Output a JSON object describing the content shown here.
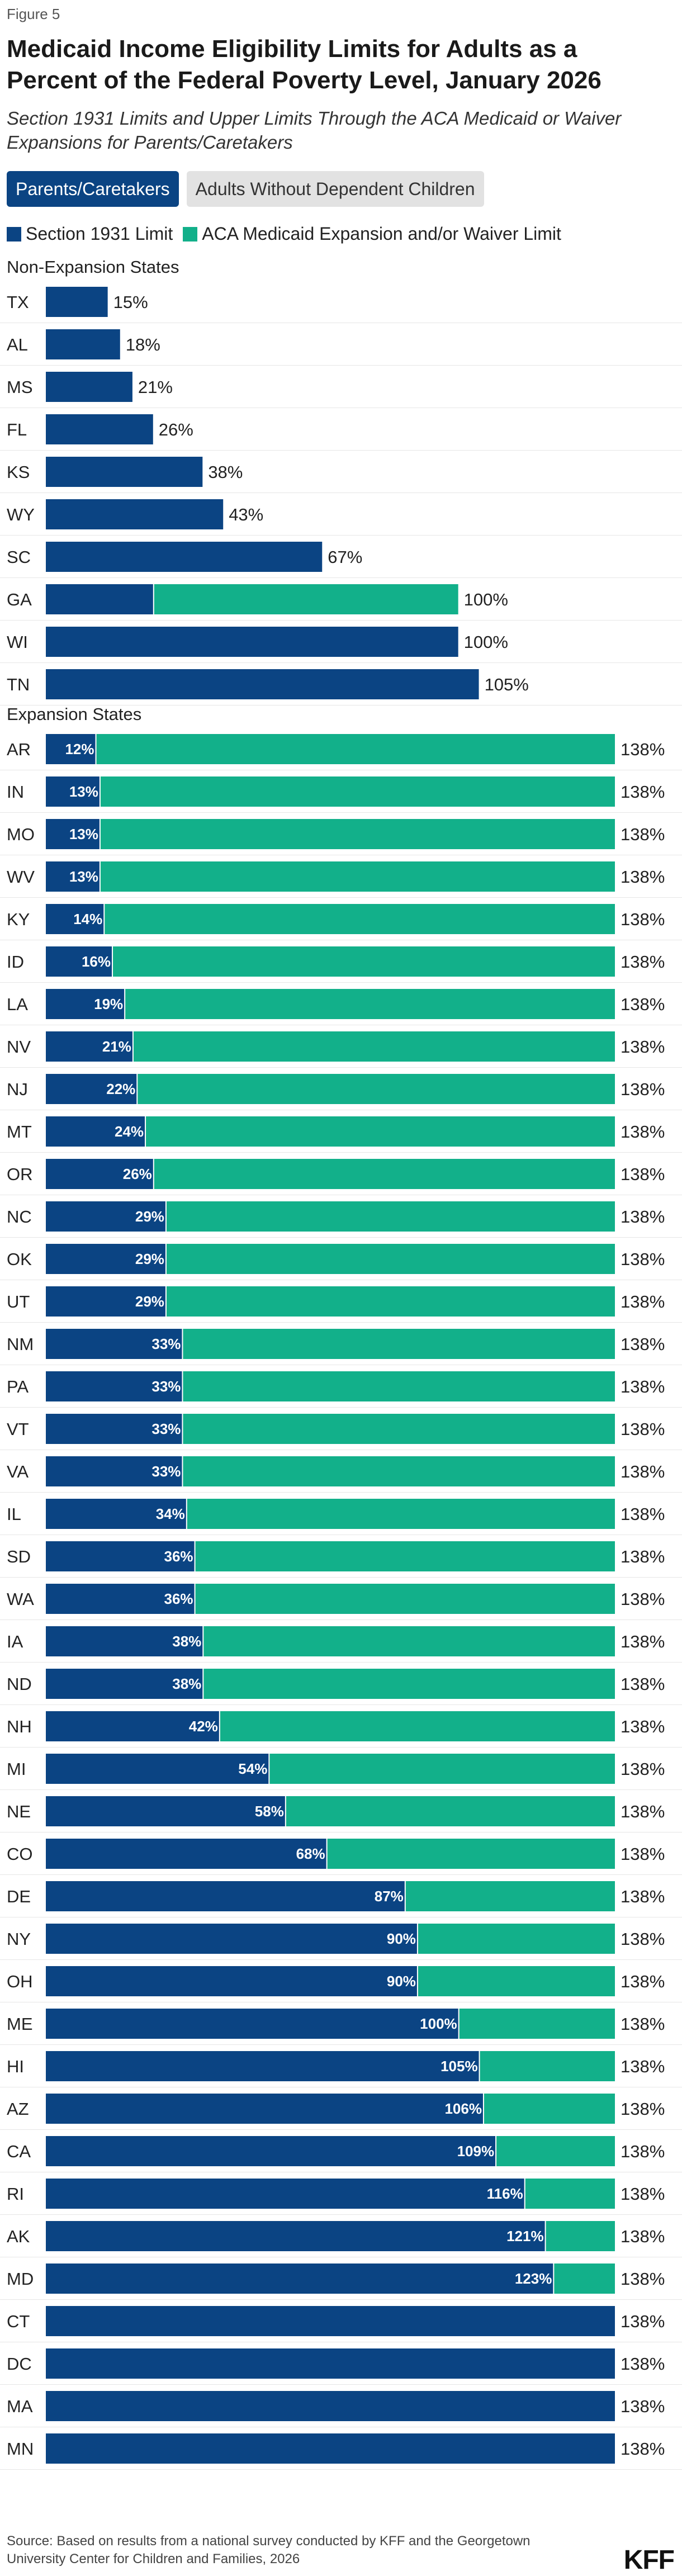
{
  "figure_label": "Figure 5",
  "title": "Medicaid Income Eligibility Limits for Adults as a Percent of the Federal Poverty Level, January 2026",
  "subtitle": "Section 1931 Limits and Upper Limits Through the ACA Medicaid or Waiver Expansions for Parents/Caretakers",
  "tabs": [
    {
      "label": "Parents/Caretakers",
      "active": true
    },
    {
      "label": "Adults Without Dependent Children",
      "active": false
    }
  ],
  "source": "Source: Based on results from a national survey conducted by KFF and the Georgetown University Center for Children and Families, 2026",
  "logo_text": "KFF",
  "colors": {
    "section1931": "#0b4483",
    "aca": "#12b08a",
    "active_tab": "#0b4483",
    "inactive_tab": "#e2e2e2"
  },
  "chart_data": {
    "type": "bar",
    "orientation": "horizontal",
    "stacked": true,
    "unit": "%",
    "xlim": [
      0,
      138
    ],
    "grid": false,
    "legend_placement": "top-left",
    "series": [
      {
        "key": "section1931",
        "name": "Section 1931 Limit",
        "color": "#0b4483"
      },
      {
        "key": "aca",
        "name": "ACA Medicaid Expansion and/or Waiver Limit",
        "color": "#12b08a"
      }
    ],
    "groups": [
      {
        "name": "Non-Expansion States",
        "rows": [
          {
            "state": "TX",
            "section1931": 15,
            "total": 15
          },
          {
            "state": "AL",
            "section1931": 18,
            "total": 18
          },
          {
            "state": "MS",
            "section1931": 21,
            "total": 21
          },
          {
            "state": "FL",
            "section1931": 26,
            "total": 26
          },
          {
            "state": "KS",
            "section1931": 38,
            "total": 38
          },
          {
            "state": "WY",
            "section1931": 43,
            "total": 43
          },
          {
            "state": "SC",
            "section1931": 67,
            "total": 67
          },
          {
            "state": "GA",
            "section1931": 26,
            "total": 100,
            "show_inner_label": false
          },
          {
            "state": "WI",
            "section1931": 100,
            "total": 100
          },
          {
            "state": "TN",
            "section1931": 105,
            "total": 105
          }
        ]
      },
      {
        "name": "Expansion States",
        "rows": [
          {
            "state": "AR",
            "section1931": 12,
            "total": 138
          },
          {
            "state": "IN",
            "section1931": 13,
            "total": 138
          },
          {
            "state": "MO",
            "section1931": 13,
            "total": 138
          },
          {
            "state": "WV",
            "section1931": 13,
            "total": 138
          },
          {
            "state": "KY",
            "section1931": 14,
            "total": 138
          },
          {
            "state": "ID",
            "section1931": 16,
            "total": 138
          },
          {
            "state": "LA",
            "section1931": 19,
            "total": 138
          },
          {
            "state": "NV",
            "section1931": 21,
            "total": 138
          },
          {
            "state": "NJ",
            "section1931": 22,
            "total": 138
          },
          {
            "state": "MT",
            "section1931": 24,
            "total": 138
          },
          {
            "state": "OR",
            "section1931": 26,
            "total": 138
          },
          {
            "state": "NC",
            "section1931": 29,
            "total": 138
          },
          {
            "state": "OK",
            "section1931": 29,
            "total": 138
          },
          {
            "state": "UT",
            "section1931": 29,
            "total": 138
          },
          {
            "state": "NM",
            "section1931": 33,
            "total": 138
          },
          {
            "state": "PA",
            "section1931": 33,
            "total": 138
          },
          {
            "state": "VT",
            "section1931": 33,
            "total": 138
          },
          {
            "state": "VA",
            "section1931": 33,
            "total": 138
          },
          {
            "state": "IL",
            "section1931": 34,
            "total": 138
          },
          {
            "state": "SD",
            "section1931": 36,
            "total": 138
          },
          {
            "state": "WA",
            "section1931": 36,
            "total": 138
          },
          {
            "state": "IA",
            "section1931": 38,
            "total": 138
          },
          {
            "state": "ND",
            "section1931": 38,
            "total": 138
          },
          {
            "state": "NH",
            "section1931": 42,
            "total": 138
          },
          {
            "state": "MI",
            "section1931": 54,
            "total": 138
          },
          {
            "state": "NE",
            "section1931": 58,
            "total": 138
          },
          {
            "state": "CO",
            "section1931": 68,
            "total": 138
          },
          {
            "state": "DE",
            "section1931": 87,
            "total": 138
          },
          {
            "state": "NY",
            "section1931": 90,
            "total": 138
          },
          {
            "state": "OH",
            "section1931": 90,
            "total": 138
          },
          {
            "state": "ME",
            "section1931": 100,
            "total": 138
          },
          {
            "state": "HI",
            "section1931": 105,
            "total": 138
          },
          {
            "state": "AZ",
            "section1931": 106,
            "total": 138
          },
          {
            "state": "CA",
            "section1931": 109,
            "total": 138
          },
          {
            "state": "RI",
            "section1931": 116,
            "total": 138
          },
          {
            "state": "AK",
            "section1931": 121,
            "total": 138
          },
          {
            "state": "MD",
            "section1931": 123,
            "total": 138
          },
          {
            "state": "CT",
            "section1931": 138,
            "total": 138
          },
          {
            "state": "DC",
            "section1931": 138,
            "total": 138
          },
          {
            "state": "MA",
            "section1931": 138,
            "total": 138
          },
          {
            "state": "MN",
            "section1931": 138,
            "total": 138
          }
        ]
      }
    ]
  }
}
